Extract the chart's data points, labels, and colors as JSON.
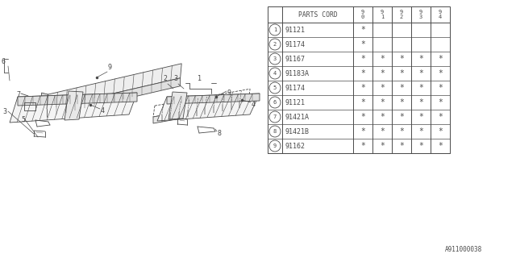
{
  "diagram_id": "A911000038",
  "bg_color": "#ffffff",
  "line_color": "#4a4a4a",
  "table": {
    "rows": [
      {
        "num": "1",
        "code": "91121",
        "marks": [
          true,
          false,
          false,
          false,
          false
        ]
      },
      {
        "num": "2",
        "code": "91174",
        "marks": [
          true,
          false,
          false,
          false,
          false
        ]
      },
      {
        "num": "3",
        "code": "91167",
        "marks": [
          true,
          true,
          true,
          true,
          true
        ]
      },
      {
        "num": "4",
        "code": "91183A",
        "marks": [
          true,
          true,
          true,
          true,
          true
        ]
      },
      {
        "num": "5",
        "code": "91174",
        "marks": [
          true,
          true,
          true,
          true,
          true
        ]
      },
      {
        "num": "6",
        "code": "91121",
        "marks": [
          true,
          true,
          true,
          true,
          true
        ]
      },
      {
        "num": "7",
        "code": "91421A",
        "marks": [
          true,
          true,
          true,
          true,
          true
        ]
      },
      {
        "num": "8",
        "code": "91421B",
        "marks": [
          true,
          true,
          true,
          true,
          true
        ]
      },
      {
        "num": "9",
        "code": "91162",
        "marks": [
          true,
          true,
          true,
          true,
          true
        ]
      }
    ]
  }
}
